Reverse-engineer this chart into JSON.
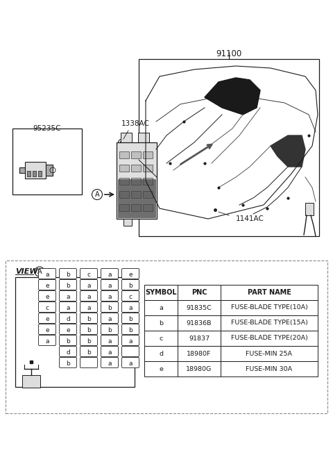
{
  "bg_color": "#ffffff",
  "label_91100": "91100",
  "label_1338AC": "1338AC",
  "label_1141AC": "1141AC",
  "label_95235C": "95235C",
  "table_headers": [
    "SYMBOL",
    "PNC",
    "PART NAME"
  ],
  "table_rows": [
    [
      "a",
      "91835C",
      "FUSE-BLADE TYPE(10A)"
    ],
    [
      "b",
      "91836B",
      "FUSE-BLADE TYPE(15A)"
    ],
    [
      "c",
      "91837",
      "FUSE-BLADE TYPE(20A)"
    ],
    [
      "d",
      "18980F",
      "FUSE-MIN 25A"
    ],
    [
      "e",
      "18980G",
      "FUSE-MIN 30A"
    ]
  ],
  "fuse_grid_row1": [
    "b",
    "",
    "a",
    "a"
  ],
  "fuse_grid_row2": [
    "d",
    "b",
    "a",
    ""
  ],
  "fuse_grid_row3": [
    "a",
    "b",
    "b",
    "a",
    "a"
  ],
  "fuse_grid_row4": [
    "e",
    "e",
    "b",
    "b",
    "b"
  ],
  "fuse_grid_row5": [
    "e",
    "d",
    "b",
    "a",
    "b"
  ],
  "fuse_grid_row6": [
    "c",
    "a",
    "a",
    "b",
    "a"
  ],
  "fuse_grid_row7": [
    "e",
    "a",
    "a",
    "a",
    "c"
  ],
  "fuse_grid_row8": [
    "e",
    "b",
    "a",
    "a",
    "b"
  ],
  "fuse_grid_row9": [
    "a",
    "b",
    "c",
    "a",
    "e"
  ]
}
